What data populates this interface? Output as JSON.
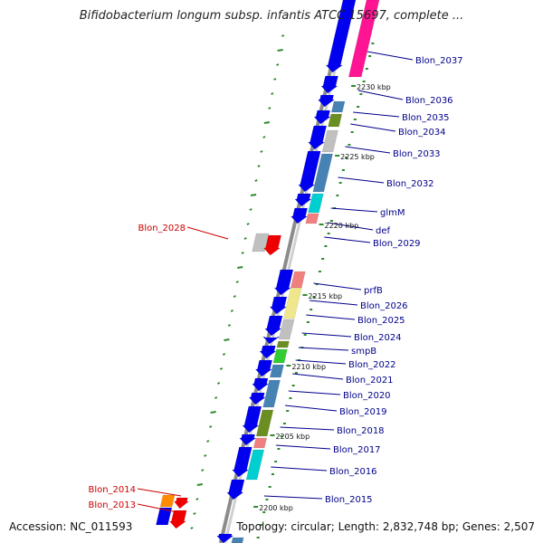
{
  "title": "Bifidobacterium longum subsp. infantis ATCC 15697, complete ...",
  "accession": "Accession: NC_011593",
  "topology": "Topology: circular; Length: 2,832,748 bp; Genes: 2,507",
  "colors": {
    "backbone": "#8c8c8c",
    "gene_forward": "#0000ee",
    "gene_reverse": "#ee0000",
    "label_forward": "#00008b",
    "label_reverse": "#cc0000",
    "gc_ticks": "#2e8b2e",
    "magenta": "#ff1493",
    "steelblue": "#4682b4",
    "cyan": "#00ced1",
    "olive": "#6b8e23",
    "yellow": "#f0e68c",
    "salmon": "#f08080",
    "silver": "#c0c0c0",
    "green": "#32cd32",
    "orange": "#ff8c00"
  },
  "kbp_markers": [
    "2230 kbp",
    "2225 kbp",
    "2220 kbp",
    "2215 kbp",
    "2210 kbp",
    "2205 kbp",
    "2200 kbp"
  ],
  "genes_forward": [
    "Blon_2037",
    "Blon_2036",
    "Blon_2035",
    "Blon_2034",
    "Blon_2033",
    "Blon_2032",
    "glmM",
    "def",
    "Blon_2029",
    "prfB",
    "Blon_2026",
    "Blon_2025",
    "Blon_2024",
    "smpB",
    "Blon_2022",
    "Blon_2021",
    "Blon_2020",
    "Blon_2019",
    "Blon_2018",
    "Blon_2017",
    "Blon_2016",
    "Blon_2015"
  ],
  "genes_reverse": [
    "Blon_2028",
    "Blon_2014",
    "Blon_2013"
  ]
}
